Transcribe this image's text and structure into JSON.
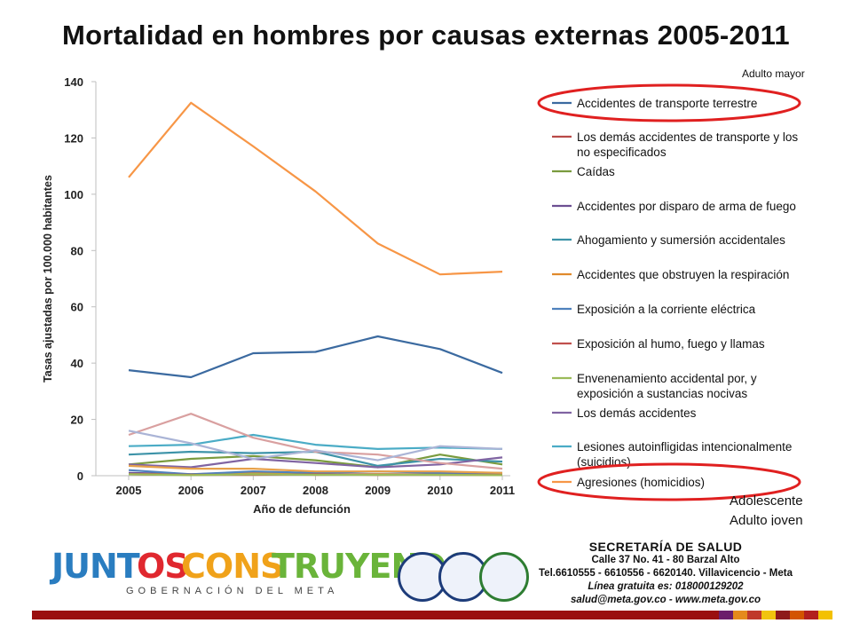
{
  "title": "Mortalidad en hombres por causas externas 2005-2011",
  "notes": {
    "top": "Adulto mayor",
    "bottom1": "Adolescente",
    "bottom2": "Adulto joven"
  },
  "chart_data": {
    "type": "line",
    "x": [
      "2005",
      "2006",
      "2007",
      "2008",
      "2009",
      "2010",
      "2011"
    ],
    "xlabel": "Año de defunción",
    "ylabel": "Tasas ajustadas por 100.000 habitantes",
    "ylim": [
      0,
      140
    ],
    "yticks": [
      "0",
      "20",
      "40",
      "60",
      "80",
      "100",
      "120",
      "140"
    ],
    "grid": false,
    "legend_position": "right",
    "series": [
      {
        "name": "Accidentes de transporte terrestre",
        "color": "#3b6aa0",
        "circled": true,
        "values": [
          37.5,
          35,
          43.5,
          44,
          49.5,
          45,
          36.5
        ]
      },
      {
        "name": "Los demás accidentes de transporte y los no especificados",
        "color": "#b94a48",
        "circled": false,
        "values": [
          0.5,
          0.3,
          0.5,
          0.4,
          0.3,
          0.4,
          0.3
        ]
      },
      {
        "name": "Caídas",
        "color": "#7a9b3e",
        "circled": false,
        "values": [
          4,
          6,
          7,
          5.5,
          3,
          7.5,
          4
        ]
      },
      {
        "name": "Accidentes por disparo de arma de fuego",
        "color": "#6d4f92",
        "circled": false,
        "values": [
          1,
          0.5,
          1,
          0.5,
          0.5,
          0.5,
          0.5
        ]
      },
      {
        "name": "Ahogamiento y sumersión accidentales",
        "color": "#3d93a8",
        "circled": false,
        "values": [
          7.5,
          8.5,
          8,
          8.5,
          3.5,
          6,
          5
        ]
      },
      {
        "name": "Accidentes que obstruyen la respiración",
        "color": "#e08a2c",
        "circled": false,
        "values": [
          0.5,
          0.5,
          1,
          0.3,
          0.5,
          0.3,
          0.3
        ]
      },
      {
        "name": "Exposición a la corriente eléctrica",
        "color": "#4f81bd",
        "circled": false,
        "values": [
          2,
          0.5,
          1.5,
          1,
          1.5,
          1,
          1
        ]
      },
      {
        "name": "Exposición al humo, fuego y llamas",
        "color": "#c0504d",
        "circled": false,
        "values": [
          0.5,
          0.3,
          0.3,
          0.5,
          0.3,
          0.3,
          0.3
        ]
      },
      {
        "name": "Envenenamiento accidental por, y exposición a sustancias nocivas",
        "color": "#9bbb59",
        "circled": false,
        "values": [
          0.5,
          0.2,
          0.5,
          0.3,
          0.3,
          0.3,
          0.2
        ]
      },
      {
        "name": "Los demás accidentes",
        "color": "#8064a2",
        "circled": false,
        "values": [
          4,
          3,
          6,
          4.5,
          3,
          4,
          6.5
        ]
      },
      {
        "name": "Lesiones autoinfligidas intencionalmente (suicidios)",
        "color": "#4bacc6",
        "circled": false,
        "values": [
          10.5,
          11,
          14.5,
          11,
          9.5,
          10,
          9.5
        ]
      },
      {
        "name": "Agresiones (homicidios)",
        "color": "#f79646",
        "circled": true,
        "values": [
          106,
          132.5,
          117,
          101,
          82.5,
          71.5,
          72.5
        ]
      },
      {
        "name": "",
        "color": "#d9a0a0",
        "circled": false,
        "values": [
          14.5,
          22,
          13.5,
          8.5,
          7.5,
          4.5,
          2.5
        ]
      },
      {
        "name": "",
        "color": "#aab4d6",
        "circled": false,
        "values": [
          16,
          11.5,
          6,
          9,
          5.5,
          10.5,
          9.5
        ]
      },
      {
        "name": "",
        "color": "#e6a04a",
        "circled": false,
        "values": [
          3.5,
          2.5,
          2.5,
          1.5,
          1.5,
          1.5,
          1
        ]
      }
    ]
  },
  "footer": {
    "logo_text": "JUNTOS CONSTRUYENDO",
    "logo_sub": "GOBERNACIÓN DEL META",
    "secretaria_title": "SECRETARÍA DE SALUD",
    "address1": "Calle 37 No. 41 - 80 Barzal Alto",
    "phones": "Tel.6610555 - 6610556 - 6620140. Villavicencio - Meta",
    "hotline": "Línea gratuita es: 018000129202",
    "contact": "salud@meta.gov.co - www.meta.gov.co",
    "bar_colors": [
      "#6b1e6b",
      "#e58a1c",
      "#c0392b",
      "#f1c40f",
      "#8e1a1a",
      "#d35400",
      "#b21f1f",
      "#f3c100"
    ]
  }
}
